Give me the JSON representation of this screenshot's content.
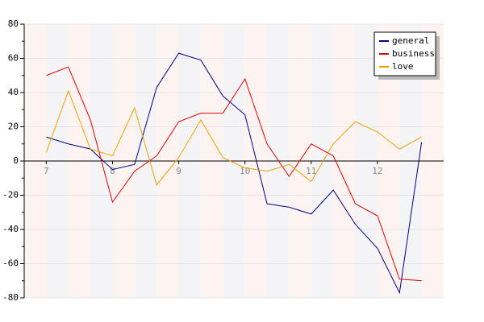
{
  "chart_data": {
    "type": "line",
    "categories": [
      "7",
      null,
      null,
      "8",
      null,
      null,
      "9",
      null,
      null,
      "10",
      null,
      null,
      "11",
      null,
      null,
      "12",
      null,
      null
    ],
    "series": [
      {
        "name": "general",
        "color": "#000080",
        "values": [
          14,
          10,
          7,
          -5,
          -2,
          43,
          63,
          59,
          38,
          27,
          -25,
          -27,
          -31,
          -17,
          -37,
          -51,
          -77,
          11
        ]
      },
      {
        "name": "business",
        "color": "#e00000",
        "values": [
          50,
          55,
          24,
          -24,
          -6,
          3,
          23,
          28,
          28,
          48,
          10,
          -9,
          10,
          3,
          -25,
          -32,
          -69,
          -70
        ]
      },
      {
        "name": "love",
        "color": "#f0a000",
        "values": [
          5,
          41,
          7,
          3,
          31,
          -14,
          2,
          24,
          2,
          -4,
          -6,
          -2,
          -12,
          10,
          23,
          17,
          7,
          14
        ]
      }
    ],
    "ylim": [
      -80,
      80
    ],
    "yticks": [
      -80,
      -60,
      -40,
      -20,
      0,
      20,
      40,
      60,
      80
    ],
    "grid": true,
    "legend": "top-right"
  }
}
